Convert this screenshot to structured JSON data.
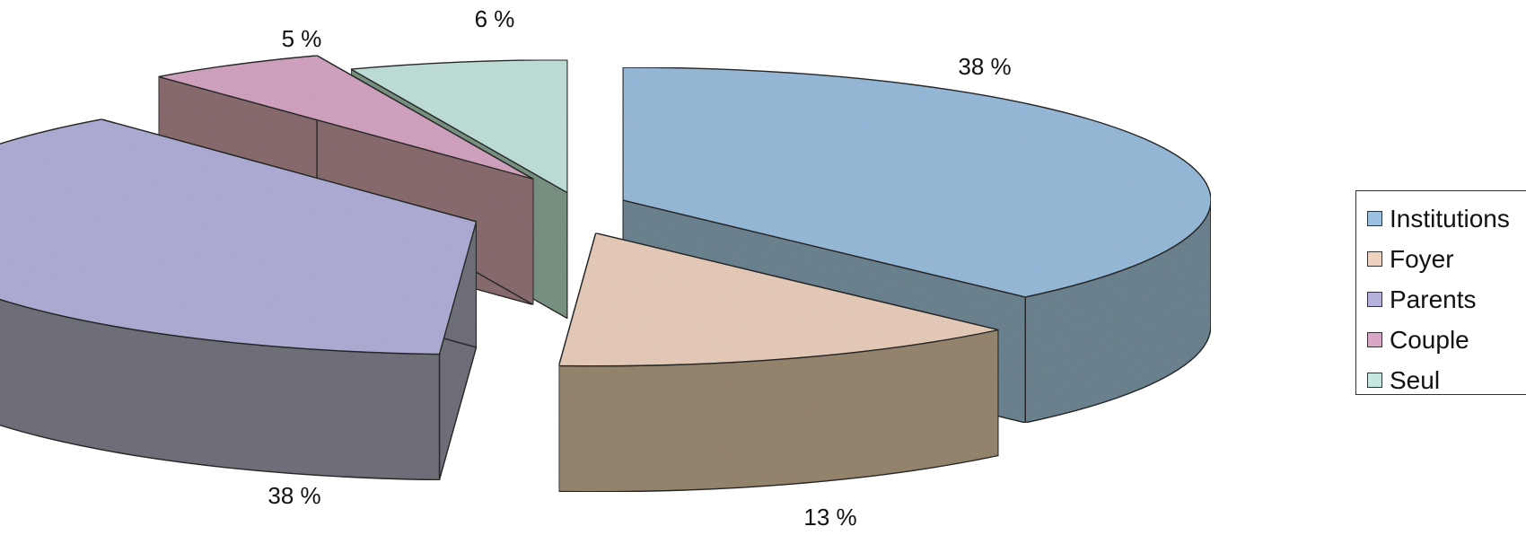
{
  "chart_data": {
    "type": "pie",
    "style": "3d-exploded",
    "categories": [
      "Institutions",
      "Foyer",
      "Parents",
      "Couple",
      "Seul"
    ],
    "values": [
      38,
      13,
      38,
      5,
      6
    ],
    "labels": [
      "38 %",
      "13 %",
      "38 %",
      "5 %",
      "6 %"
    ],
    "colors": [
      "#9cc0e0",
      "#eed2c0",
      "#b4b2dc",
      "#d8a8c6",
      "#c6e6e0"
    ],
    "side_colors": [
      "#6f8795",
      "#9b8a72",
      "#74747f",
      "#8d6f72",
      "#7e9786"
    ],
    "legend_position": "right"
  },
  "legend": {
    "items": [
      {
        "label": "Institutions",
        "color": "#9cc0e0"
      },
      {
        "label": "Foyer",
        "color": "#eed2c0"
      },
      {
        "label": "Parents",
        "color": "#b4b2dc"
      },
      {
        "label": "Couple",
        "color": "#d8a8c6"
      },
      {
        "label": "Seul",
        "color": "#c6e6e0"
      }
    ]
  }
}
